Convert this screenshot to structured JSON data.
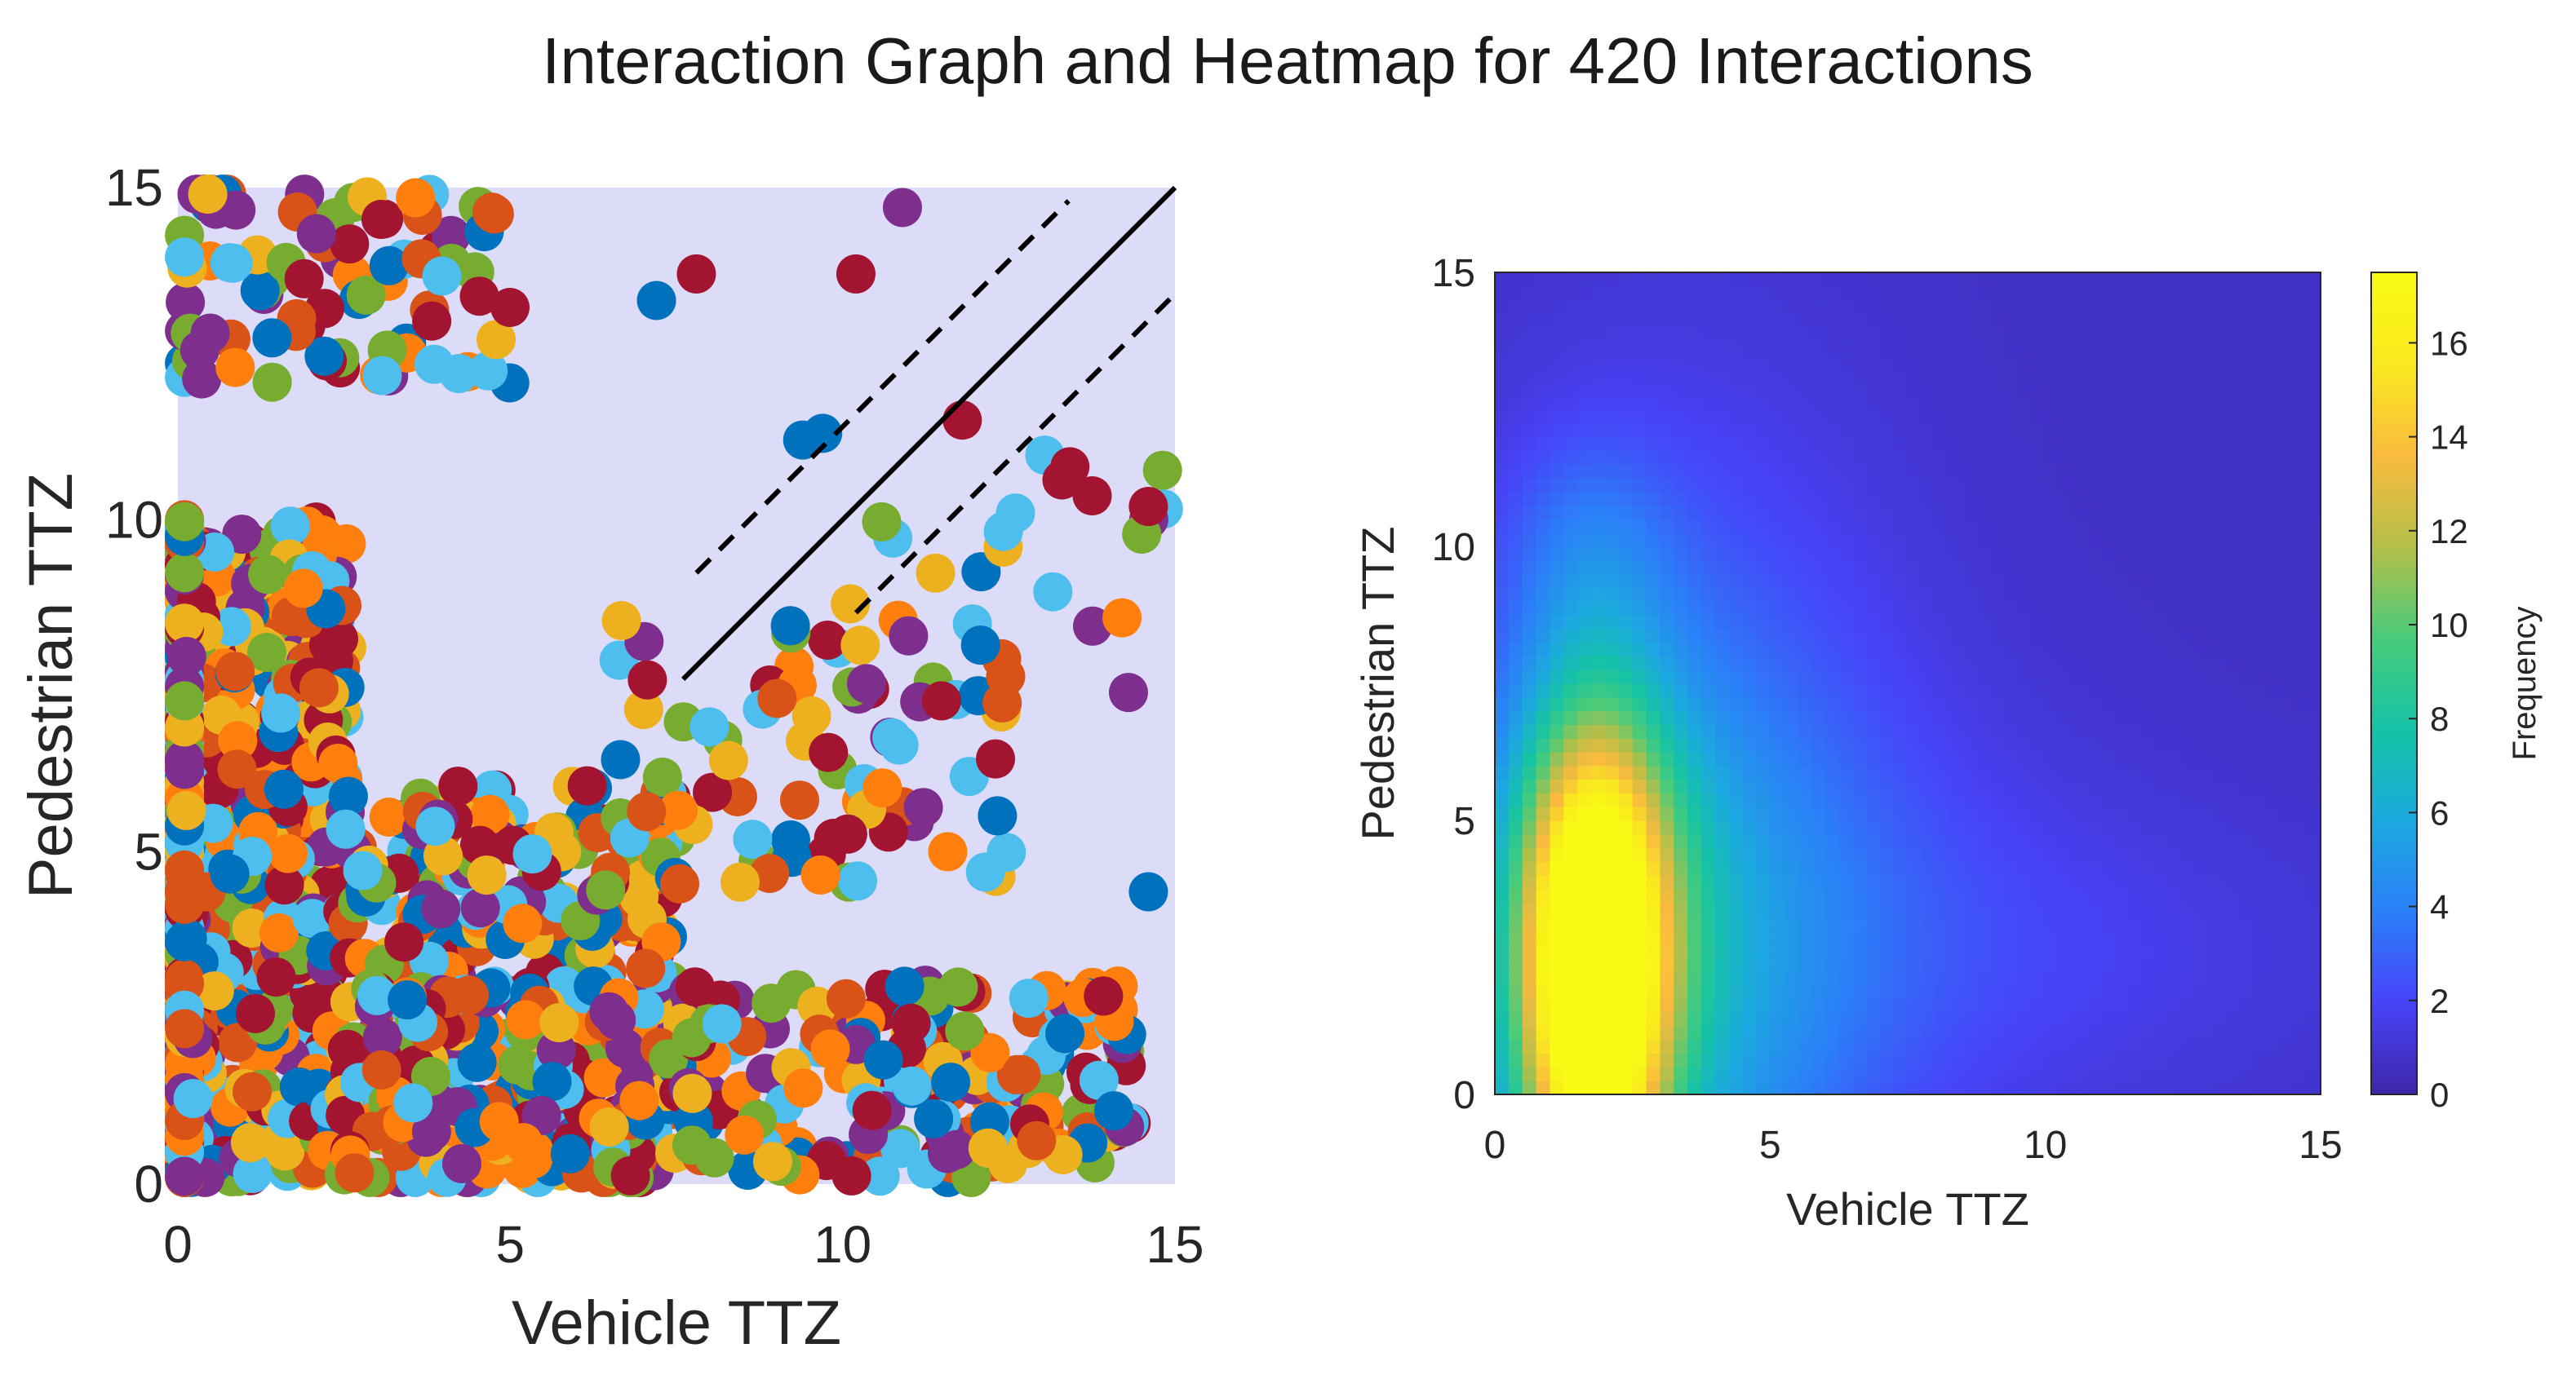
{
  "figure": {
    "title": "Interaction Graph and Heatmap for 420 Interactions"
  },
  "chart_data": [
    {
      "type": "scatter",
      "title": "",
      "xlabel": "Vehicle TTZ",
      "ylabel": "Pedestrian TTZ",
      "xlim": [
        0,
        15
      ],
      "ylim": [
        0,
        15
      ],
      "xticks": [
        0,
        5,
        10,
        15
      ],
      "yticks": [
        0,
        5,
        10,
        15
      ],
      "grid": false,
      "background": "#dcdcf8",
      "series_colors": [
        "#0072bd",
        "#d95319",
        "#edb120",
        "#7e2f8e",
        "#77ac30",
        "#4dbeee",
        "#a2142f",
        "#ff7f0e"
      ],
      "reference_lines": [
        {
          "style": "solid",
          "color": "#000000",
          "points": [
            [
              7.6,
              7.6
            ],
            [
              15,
              15
            ]
          ]
        },
        {
          "style": "dashed",
          "color": "#000000",
          "points": [
            [
              7.8,
              9.2
            ],
            [
              13.4,
              14.8
            ]
          ]
        },
        {
          "style": "dashed",
          "color": "#000000",
          "points": [
            [
              10.2,
              8.6
            ],
            [
              15,
              13.4
            ]
          ]
        }
      ],
      "density": [
        {
          "x": 0.3,
          "y": 5.0,
          "w": 4.5,
          "h": 10.0,
          "n": 850
        },
        {
          "x": 5.0,
          "y": 3.0,
          "w": 5.0,
          "h": 6.0,
          "n": 350
        },
        {
          "x": 2.5,
          "y": 13.5,
          "w": 5.0,
          "h": 3.0,
          "n": 90
        },
        {
          "x": 8.5,
          "y": 1.5,
          "w": 12.0,
          "h": 3.0,
          "n": 320
        },
        {
          "x": 9.5,
          "y": 6.5,
          "w": 6.0,
          "h": 4.0,
          "n": 90
        },
        {
          "x": 12.5,
          "y": 9.5,
          "w": 5.0,
          "h": 3.0,
          "n": 20
        }
      ],
      "points": [
        {
          "x": 10.2,
          "y": 13.7,
          "c": 6
        },
        {
          "x": 10.9,
          "y": 14.7,
          "c": 3
        },
        {
          "x": 7.2,
          "y": 13.3,
          "c": 0
        },
        {
          "x": 7.8,
          "y": 13.7,
          "c": 6
        },
        {
          "x": 14.6,
          "y": 10.2,
          "c": 6
        },
        {
          "x": 14.3,
          "y": 7.4,
          "c": 3
        },
        {
          "x": 14.6,
          "y": 4.4,
          "c": 0
        },
        {
          "x": 11.8,
          "y": 11.5,
          "c": 6
        },
        {
          "x": 12.3,
          "y": 6.4,
          "c": 6
        },
        {
          "x": 9.4,
          "y": 11.2,
          "c": 0
        },
        {
          "x": 9.7,
          "y": 11.3,
          "c": 0
        },
        {
          "x": 12.6,
          "y": 10.1,
          "c": 5
        },
        {
          "x": 13.3,
          "y": 10.6,
          "c": 6
        }
      ]
    },
    {
      "type": "heatmap",
      "title": "",
      "xlabel": "Vehicle TTZ",
      "ylabel": "Pedestrian TTZ",
      "xlim": [
        0,
        15
      ],
      "ylim": [
        0,
        15
      ],
      "xticks": [
        0,
        5,
        10,
        15
      ],
      "yticks": [
        0,
        5,
        10,
        15
      ],
      "colorbar": {
        "label": "Frequency",
        "range": [
          0,
          17.5
        ],
        "ticks": [
          0,
          2,
          4,
          6,
          8,
          10,
          12,
          14,
          16
        ],
        "colors": [
          "#3e26a8",
          "#4743f8",
          "#2b7ff8",
          "#1ca9df",
          "#15c3a6",
          "#49cb7a",
          "#b5bf49",
          "#f9bb3e",
          "#f9e91f",
          "#f9fb14"
        ]
      },
      "base": 0.7,
      "hotspots": [
        {
          "x": 1.8,
          "y": 2.0,
          "sx": 0.9,
          "sy": 3.2,
          "a": 15.5
        },
        {
          "x": 1.9,
          "y": 3.5,
          "sx": 1.2,
          "sy": 2.5,
          "a": 4.0
        },
        {
          "x": 2.4,
          "y": 1.2,
          "sx": 2.5,
          "sy": 4.5,
          "a": 3.5
        },
        {
          "x": 3.5,
          "y": 5.0,
          "sx": 2.8,
          "sy": 5.5,
          "a": 2.0
        },
        {
          "x": 1.7,
          "y": 10.0,
          "sx": 1.1,
          "sy": 1.5,
          "a": 1.5
        },
        {
          "x": 6.0,
          "y": 3.0,
          "sx": 4.0,
          "sy": 3.0,
          "a": 1.0
        },
        {
          "x": 11.0,
          "y": 2.5,
          "sx": 4.0,
          "sy": 2.0,
          "a": 0.6
        }
      ]
    }
  ]
}
